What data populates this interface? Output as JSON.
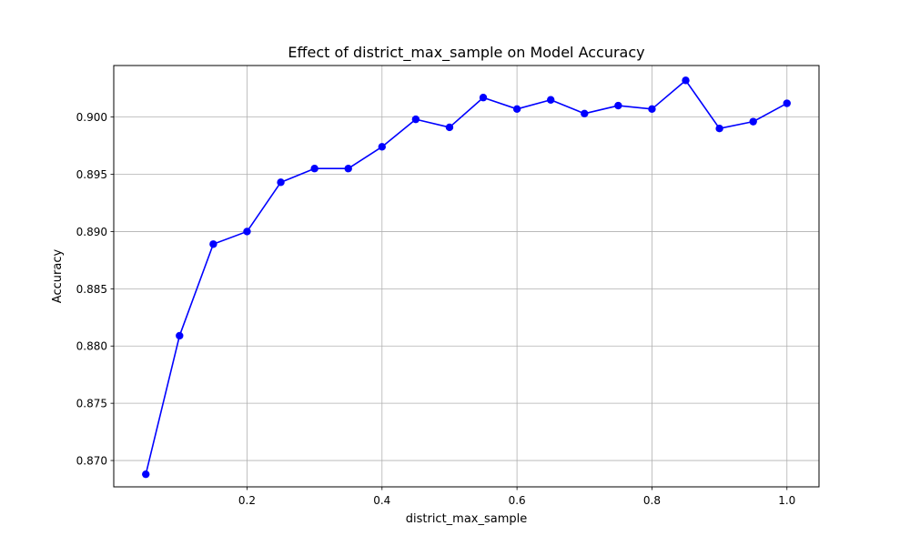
{
  "chart_data": {
    "type": "line",
    "title": "Effect of district_max_sample on Model Accuracy",
    "xlabel": "district_max_sample",
    "ylabel": "Accuracy",
    "xlim": [
      0.0025,
      1.0475
    ],
    "ylim": [
      0.8677,
      0.9045
    ],
    "x_ticks": [
      0.2,
      0.4,
      0.6,
      0.8,
      1.0
    ],
    "x_tick_labels": [
      "0.2",
      "0.4",
      "0.6",
      "0.8",
      "1.0"
    ],
    "y_ticks": [
      0.87,
      0.875,
      0.88,
      0.885,
      0.89,
      0.895,
      0.9
    ],
    "y_tick_labels": [
      "0.870",
      "0.875",
      "0.880",
      "0.885",
      "0.890",
      "0.895",
      "0.900"
    ],
    "grid": true,
    "series": [
      {
        "color": "#0000ff",
        "marker": "circle",
        "x": [
          0.05,
          0.1,
          0.15,
          0.2,
          0.25,
          0.3,
          0.35,
          0.4,
          0.45,
          0.5,
          0.55,
          0.6,
          0.65,
          0.7,
          0.75,
          0.8,
          0.85,
          0.9,
          0.95,
          1.0
        ],
        "y": [
          0.8688,
          0.8809,
          0.8889,
          0.89,
          0.8943,
          0.8955,
          0.8955,
          0.8974,
          0.8998,
          0.8991,
          0.9017,
          0.9007,
          0.9015,
          0.9003,
          0.901,
          0.9007,
          0.9032,
          0.899,
          0.8996,
          0.9012
        ]
      }
    ]
  }
}
